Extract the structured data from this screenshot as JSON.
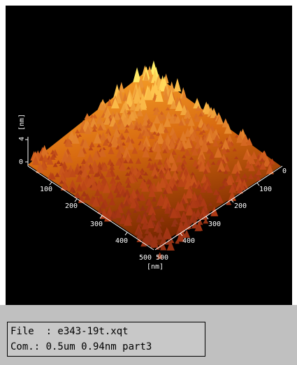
{
  "image": {
    "z_axis": {
      "max": "4",
      "unit": "[nm]",
      "zero": "0"
    },
    "left_axis": {
      "ticks": [
        "100",
        "200",
        "300",
        "400",
        "500"
      ]
    },
    "right_axis": {
      "ticks": [
        "0",
        "100",
        "200",
        "300",
        "400",
        "500"
      ],
      "unit": "[nm]"
    }
  },
  "info": {
    "file": "File  : e343-19t.xqt",
    "comment": "Com.: 0.5um 0.94nm part3"
  }
}
